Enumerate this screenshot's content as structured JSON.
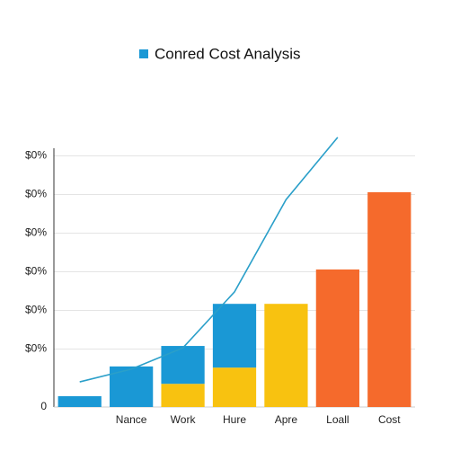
{
  "chart_data": {
    "type": "bar",
    "title": "Conred Cost Analysis",
    "categories": [
      null,
      "Nance",
      "Work",
      "Hure",
      "Apre",
      "Loall",
      "Cost"
    ],
    "series": [
      {
        "color": "#f8c210",
        "values": [
          null,
          null,
          0.6,
          1.02,
          2.67,
          null,
          null
        ]
      },
      {
        "color": "#1a98d5",
        "values": [
          0.28,
          1.05,
          0.98,
          1.65,
          null,
          null,
          null
        ]
      },
      {
        "color": "#f56a2c",
        "values": [
          null,
          null,
          null,
          null,
          null,
          3.56,
          5.56
        ]
      },
      {
        "type": "line",
        "color": "#2a9fc9",
        "values": [
          0.65,
          0.98,
          1.53,
          2.98,
          5.37,
          6.98,
          null
        ]
      }
    ],
    "ylim": [
      0,
      7.2
    ],
    "yticks": [
      0,
      {
        "value": 1.5,
        "label": "$0%"
      },
      {
        "value": 2.5,
        "label": "$0%"
      },
      {
        "value": 3.5,
        "label": "$0%"
      },
      {
        "value": 4.5,
        "label": "$0%"
      },
      {
        "value": 5.5,
        "label": "$0%"
      },
      {
        "value": 6.5,
        "label": "$0%"
      }
    ],
    "grid": true
  }
}
